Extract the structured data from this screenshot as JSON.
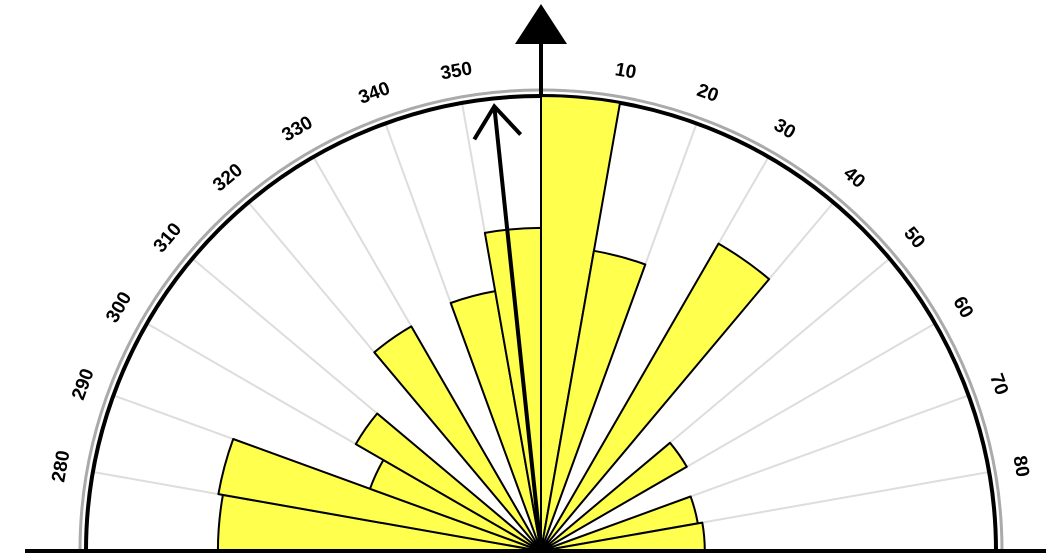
{
  "chart_data": {
    "type": "rose",
    "title": "",
    "orientation": "north-up half circle (270° to 90°)",
    "angle_ticks": [
      "280",
      "290",
      "300",
      "310",
      "320",
      "330",
      "340",
      "350",
      "10",
      "20",
      "30",
      "40",
      "50",
      "60",
      "70",
      "80"
    ],
    "bin_width_deg": 10,
    "bins": [
      {
        "from": 0,
        "to": 10,
        "value": 1.0
      },
      {
        "from": 10,
        "to": 20,
        "value": 0.67
      },
      {
        "from": 20,
        "to": 30,
        "value": 0.0
      },
      {
        "from": 30,
        "to": 40,
        "value": 0.78
      },
      {
        "from": 40,
        "to": 50,
        "value": 0.0
      },
      {
        "from": 50,
        "to": 60,
        "value": 0.37
      },
      {
        "from": 60,
        "to": 70,
        "value": 0.0
      },
      {
        "from": 70,
        "to": 80,
        "value": 0.35
      },
      {
        "from": 80,
        "to": 90,
        "value": 0.36
      },
      {
        "from": 270,
        "to": 280,
        "value": 0.71
      },
      {
        "from": 280,
        "to": 290,
        "value": 0.72
      },
      {
        "from": 290,
        "to": 300,
        "value": 0.4
      },
      {
        "from": 300,
        "to": 310,
        "value": 0.47
      },
      {
        "from": 310,
        "to": 320,
        "value": 0.0
      },
      {
        "from": 320,
        "to": 330,
        "value": 0.57
      },
      {
        "from": 330,
        "to": 340,
        "value": 0.0
      },
      {
        "from": 340,
        "to": 350,
        "value": 0.58
      },
      {
        "from": 350,
        "to": 360,
        "value": 0.71
      }
    ],
    "rlim": [
      0,
      1
    ],
    "grid": true,
    "mean_direction_deg": 354,
    "mean_vector_length": 1.0,
    "north_arrow": true
  },
  "colors": {
    "bar_fill": "#ffff4d",
    "bar_stroke": "#000000",
    "grid": "#dddddd",
    "outer_ring": "#000000",
    "outer_halo": "#aaaaaa"
  }
}
